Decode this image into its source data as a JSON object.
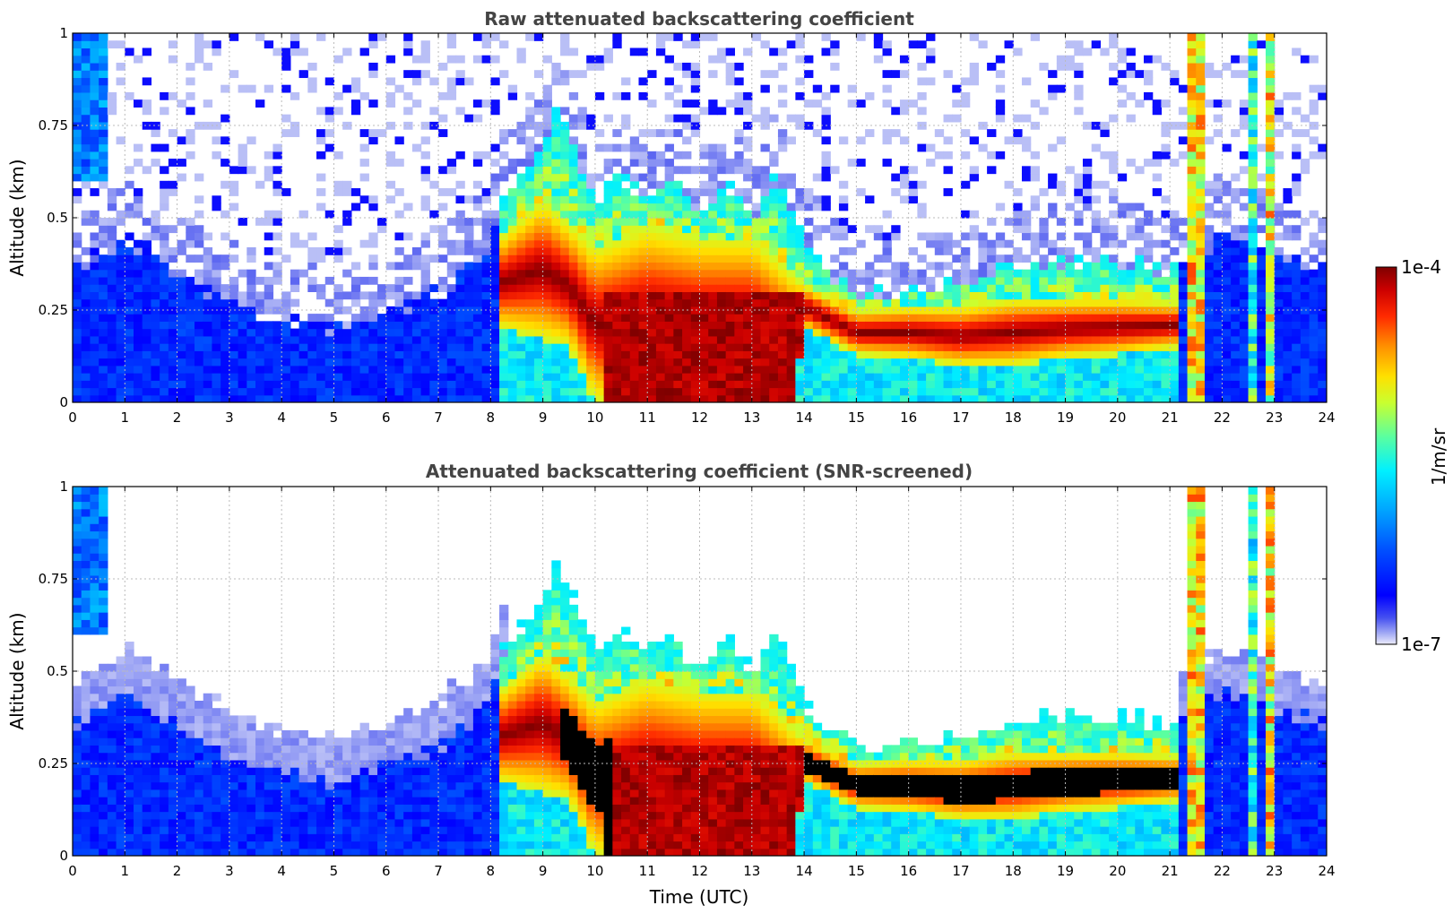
{
  "chart_data": [
    {
      "type": "heatmap",
      "title": "Raw attenuated backscattering coefficient",
      "xlabel": "",
      "ylabel": "Altitude (km)",
      "xlim": [
        0,
        24
      ],
      "ylim": [
        0,
        1
      ],
      "xticks": [
        "0",
        "1",
        "2",
        "3",
        "4",
        "5",
        "6",
        "7",
        "8",
        "9",
        "10",
        "11",
        "12",
        "13",
        "14",
        "15",
        "16",
        "17",
        "18",
        "19",
        "20",
        "21",
        "22",
        "23",
        "24"
      ],
      "yticks": [
        "0",
        "0.25",
        "0.5",
        "0.75",
        "1"
      ],
      "colorscale": "jet (log)",
      "variant": "raw",
      "features": [
        {
          "name": "boundary layer top (night)",
          "time_range": [
            0,
            8
          ],
          "altitude_km": 0.35
        },
        {
          "name": "aerosol/cloud layer",
          "time_range": [
            8.2,
            21.2
          ],
          "altitude_km": [
            0.1,
            0.6
          ]
        },
        {
          "name": "strong layer",
          "time_range": [
            14,
            21.2
          ],
          "altitude_km": [
            0.12,
            0.3
          ]
        },
        {
          "name": "precipitation/cloud columns",
          "times": [
            21.6,
            22.6,
            22.9
          ],
          "altitude_km": [
            0,
            1
          ]
        }
      ]
    },
    {
      "type": "heatmap",
      "title": "Attenuated backscattering coefficient (SNR-screened)",
      "xlabel": "Time (UTC)",
      "ylabel": "Altitude (km)",
      "xlim": [
        0,
        24
      ],
      "ylim": [
        0,
        1
      ],
      "xticks": [
        "0",
        "1",
        "2",
        "3",
        "4",
        "5",
        "6",
        "7",
        "8",
        "9",
        "10",
        "11",
        "12",
        "13",
        "14",
        "15",
        "16",
        "17",
        "18",
        "19",
        "20",
        "21",
        "22",
        "23",
        "24"
      ],
      "yticks": [
        "0",
        "0.25",
        "0.5",
        "0.75",
        "1"
      ],
      "colorscale": "jet (log)",
      "variant": "screened",
      "features": [
        {
          "name": "boundary layer top (night)",
          "time_range": [
            0,
            8
          ],
          "altitude_km": 0.45
        },
        {
          "name": "aerosol/cloud layer",
          "time_range": [
            8.2,
            21.2
          ],
          "altitude_km": [
            0.1,
            0.6
          ]
        },
        {
          "name": "saturated (black) region",
          "time_range": [
            9.2,
            21.2
          ],
          "altitude_km": [
            0.12,
            0.3
          ]
        },
        {
          "name": "precipitation/cloud columns",
          "times": [
            21.6,
            22.6,
            22.9
          ],
          "altitude_km": [
            0,
            1
          ]
        }
      ]
    }
  ],
  "colorbar": {
    "label": "1/m/sr",
    "max_label": "1e-4",
    "min_label": "1e-7",
    "vmin": 1e-07,
    "vmax": 0.0001,
    "scale": "log"
  }
}
